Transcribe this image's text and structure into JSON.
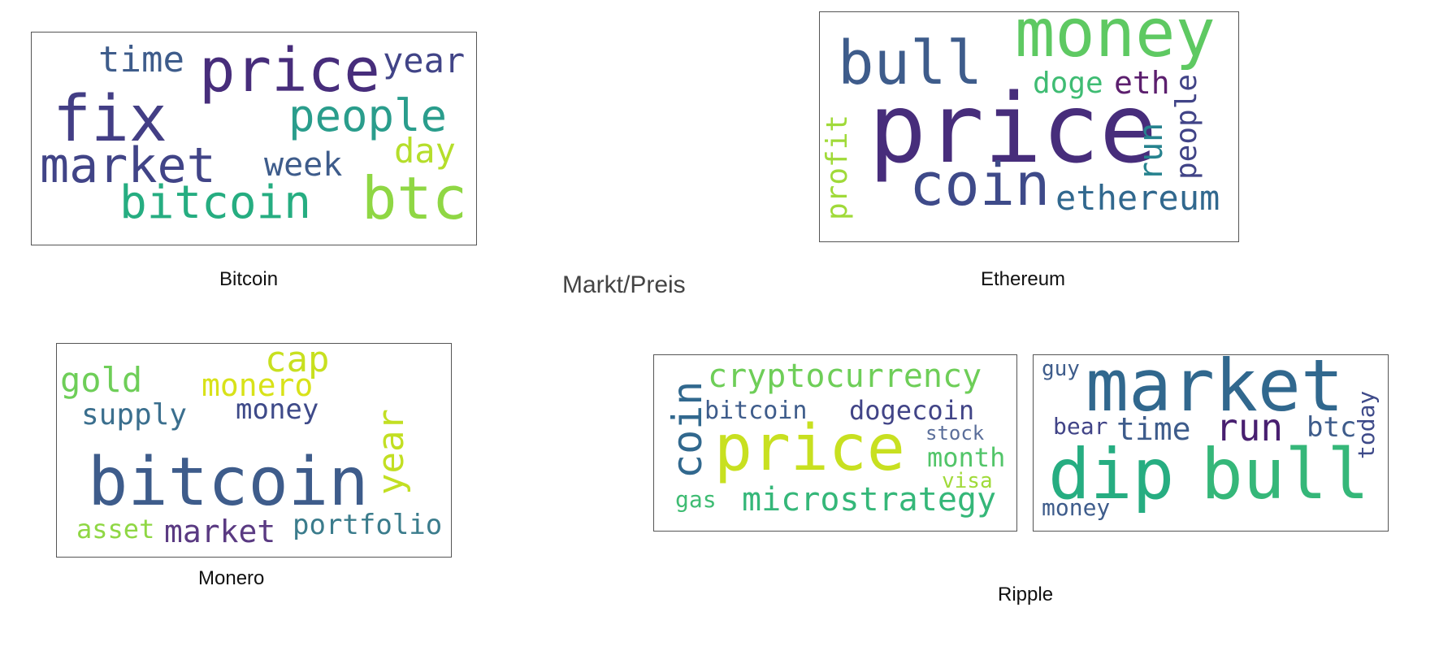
{
  "center_label": "Markt/Preis",
  "clouds": {
    "bitcoin": {
      "caption": "Bitcoin",
      "words": {
        "time": "time",
        "price": "price",
        "year": "year",
        "fix": "fix",
        "people": "people",
        "market": "market",
        "week": "week",
        "day": "day",
        "bitcoin": "bitcoin",
        "btc": "btc"
      }
    },
    "ethereum": {
      "caption": "Ethereum",
      "words": {
        "bull": "bull",
        "money": "money",
        "price": "price",
        "doge": "doge",
        "eth": "eth",
        "people": "people",
        "run": "run",
        "profit": "profit",
        "coin": "coin",
        "ethereum": "ethereum"
      }
    },
    "monero": {
      "caption": "Monero",
      "words": {
        "gold": "gold",
        "cap": "cap",
        "monero": "monero",
        "supply": "supply",
        "money": "money",
        "year": "year",
        "bitcoin": "bitcoin",
        "asset": "asset",
        "market": "market",
        "portfolio": "portfolio"
      }
    },
    "ripple": {
      "caption": "Ripple",
      "left_words": {
        "coin": "coin",
        "cryptocurrency": "cryptocurrency",
        "bitcoin": "bitcoin",
        "dogecoin": "dogecoin",
        "stock": "stock",
        "price": "price",
        "month": "month",
        "visa": "visa",
        "gas": "gas",
        "microstrategy": "microstrategy"
      },
      "right_words": {
        "guy": "guy",
        "market": "market",
        "today": "today",
        "bear": "bear",
        "time": "time",
        "run": "run",
        "btc": "btc",
        "dip": "dip",
        "bull": "bull",
        "money": "money"
      }
    }
  },
  "palette": {
    "dark_purple": "#482878",
    "indigo": "#414487",
    "blue": "#3e5c8b",
    "teal_blue": "#31688e",
    "teal": "#26828e",
    "green_teal": "#1f9e89",
    "green": "#35b779",
    "light_green": "#6ece58",
    "yellow_green": "#b5de2b",
    "yellow": "#d8e219"
  }
}
